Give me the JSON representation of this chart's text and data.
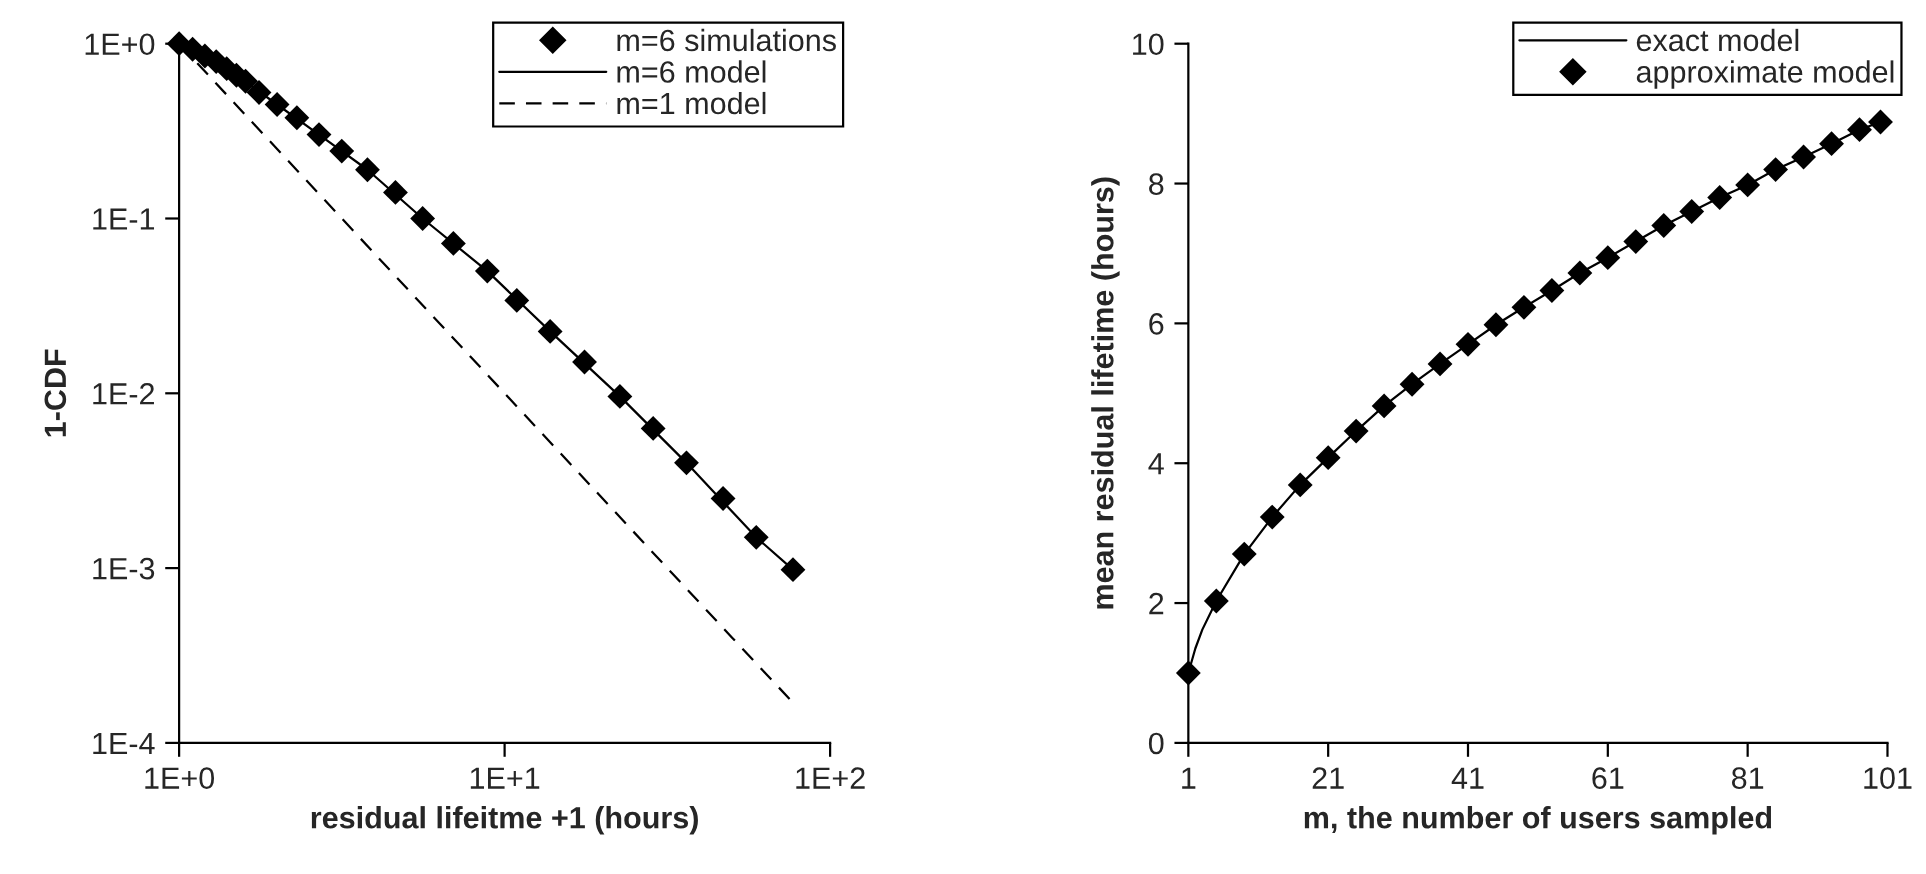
{
  "chart_data": [
    {
      "type": "line",
      "xlabel": "residual lifeitme +1 (hours)",
      "ylabel": "1-CDF",
      "log": "xy",
      "grid": false,
      "legend": "top right",
      "xlim": [
        1,
        100
      ],
      "xticks": [
        {
          "value": 1,
          "label": "1E+0"
        },
        {
          "value": 10,
          "label": "1E+1"
        },
        {
          "value": 100,
          "label": "1E+2"
        }
      ],
      "ylim": [
        0.0001,
        1
      ],
      "yticks": [
        {
          "value": 1,
          "label": "1E+0"
        },
        {
          "value": 0.1,
          "label": "1E-1"
        },
        {
          "value": 0.01,
          "label": "1E-2"
        },
        {
          "value": 0.001,
          "label": "1E-3"
        },
        {
          "value": 0.0001,
          "label": "1E-4"
        }
      ],
      "series": [
        {
          "name": "m=6 simulations",
          "type": "scatter",
          "marker": "diamond",
          "color": "#000000",
          "x": [
            1,
            1.1,
            1.2,
            1.3,
            1.4,
            1.5,
            1.6,
            1.76,
            2.0,
            2.3,
            2.69,
            3.16,
            3.79,
            4.62,
            5.6,
            6.96,
            8.85,
            10.9,
            13.8,
            17.6,
            22.6,
            28.6,
            36.2,
            46.9,
            59.3,
            76.9
          ],
          "values": [
            1,
            0.93,
            0.85,
            0.79,
            0.72,
            0.66,
            0.61,
            0.526,
            0.449,
            0.377,
            0.302,
            0.243,
            0.19,
            0.141,
            0.1,
            0.072,
            0.05,
            0.034,
            0.0226,
            0.0151,
            0.0096,
            0.0063,
            0.004,
            0.0025,
            0.0015,
            0.00098
          ]
        },
        {
          "name": "m=6 model",
          "line_style": "solid",
          "color": "#000000",
          "x": [
            1,
            1.2,
            1.5,
            2.0,
            2.69,
            3.79,
            5.6,
            8.85,
            13.8,
            22.6,
            36.2,
            59.3,
            76.9
          ],
          "values": [
            1,
            0.85,
            0.66,
            0.449,
            0.302,
            0.19,
            0.1,
            0.05,
            0.0226,
            0.0096,
            0.004,
            0.0015,
            0.00098
          ]
        },
        {
          "name": "m=1 model",
          "line_style": "dashed",
          "color": "#000000",
          "x": [
            1,
            2,
            5,
            10,
            20,
            50,
            76.9
          ],
          "values": [
            1,
            0.25,
            0.04,
            0.01,
            0.0025,
            0.0004,
            0.00017
          ]
        }
      ]
    },
    {
      "type": "line",
      "xlabel": "m, the number of users sampled",
      "ylabel": "mean residual lifetime (hours)",
      "grid": false,
      "legend": "top right",
      "xlim": [
        1,
        101
      ],
      "xticks": [
        1,
        21,
        41,
        61,
        81,
        101
      ],
      "ylim": [
        0,
        10
      ],
      "yticks": [
        0,
        2,
        4,
        6,
        8,
        10
      ],
      "series": [
        {
          "name": "exact model",
          "line_style": "solid",
          "color": "#000000",
          "x": [
            1,
            2,
            3,
            5,
            9,
            13,
            17,
            21,
            25,
            29,
            33,
            37,
            41,
            45,
            49,
            53,
            57,
            61,
            65,
            69,
            73,
            77,
            81,
            85,
            89,
            93,
            97,
            100
          ],
          "values": [
            1.0,
            1.35,
            1.62,
            2.03,
            2.7,
            3.23,
            3.69,
            4.08,
            4.46,
            4.82,
            5.13,
            5.42,
            5.7,
            5.98,
            6.23,
            6.47,
            6.72,
            6.94,
            7.17,
            7.4,
            7.6,
            7.8,
            7.98,
            8.2,
            8.38,
            8.57,
            8.77,
            8.88
          ]
        },
        {
          "name": "approximate model",
          "type": "scatter",
          "marker": "diamond",
          "color": "#000000",
          "x": [
            1,
            5,
            9,
            13,
            17,
            21,
            25,
            29,
            33,
            37,
            41,
            45,
            49,
            53,
            57,
            61,
            65,
            69,
            73,
            77,
            81,
            85,
            89,
            93,
            97,
            100
          ],
          "values": [
            1.0,
            2.03,
            2.7,
            3.23,
            3.69,
            4.08,
            4.46,
            4.82,
            5.13,
            5.42,
            5.7,
            5.98,
            6.23,
            6.47,
            6.72,
            6.94,
            7.17,
            7.4,
            7.6,
            7.8,
            7.98,
            8.2,
            8.38,
            8.57,
            8.77,
            8.88
          ]
        }
      ]
    }
  ]
}
